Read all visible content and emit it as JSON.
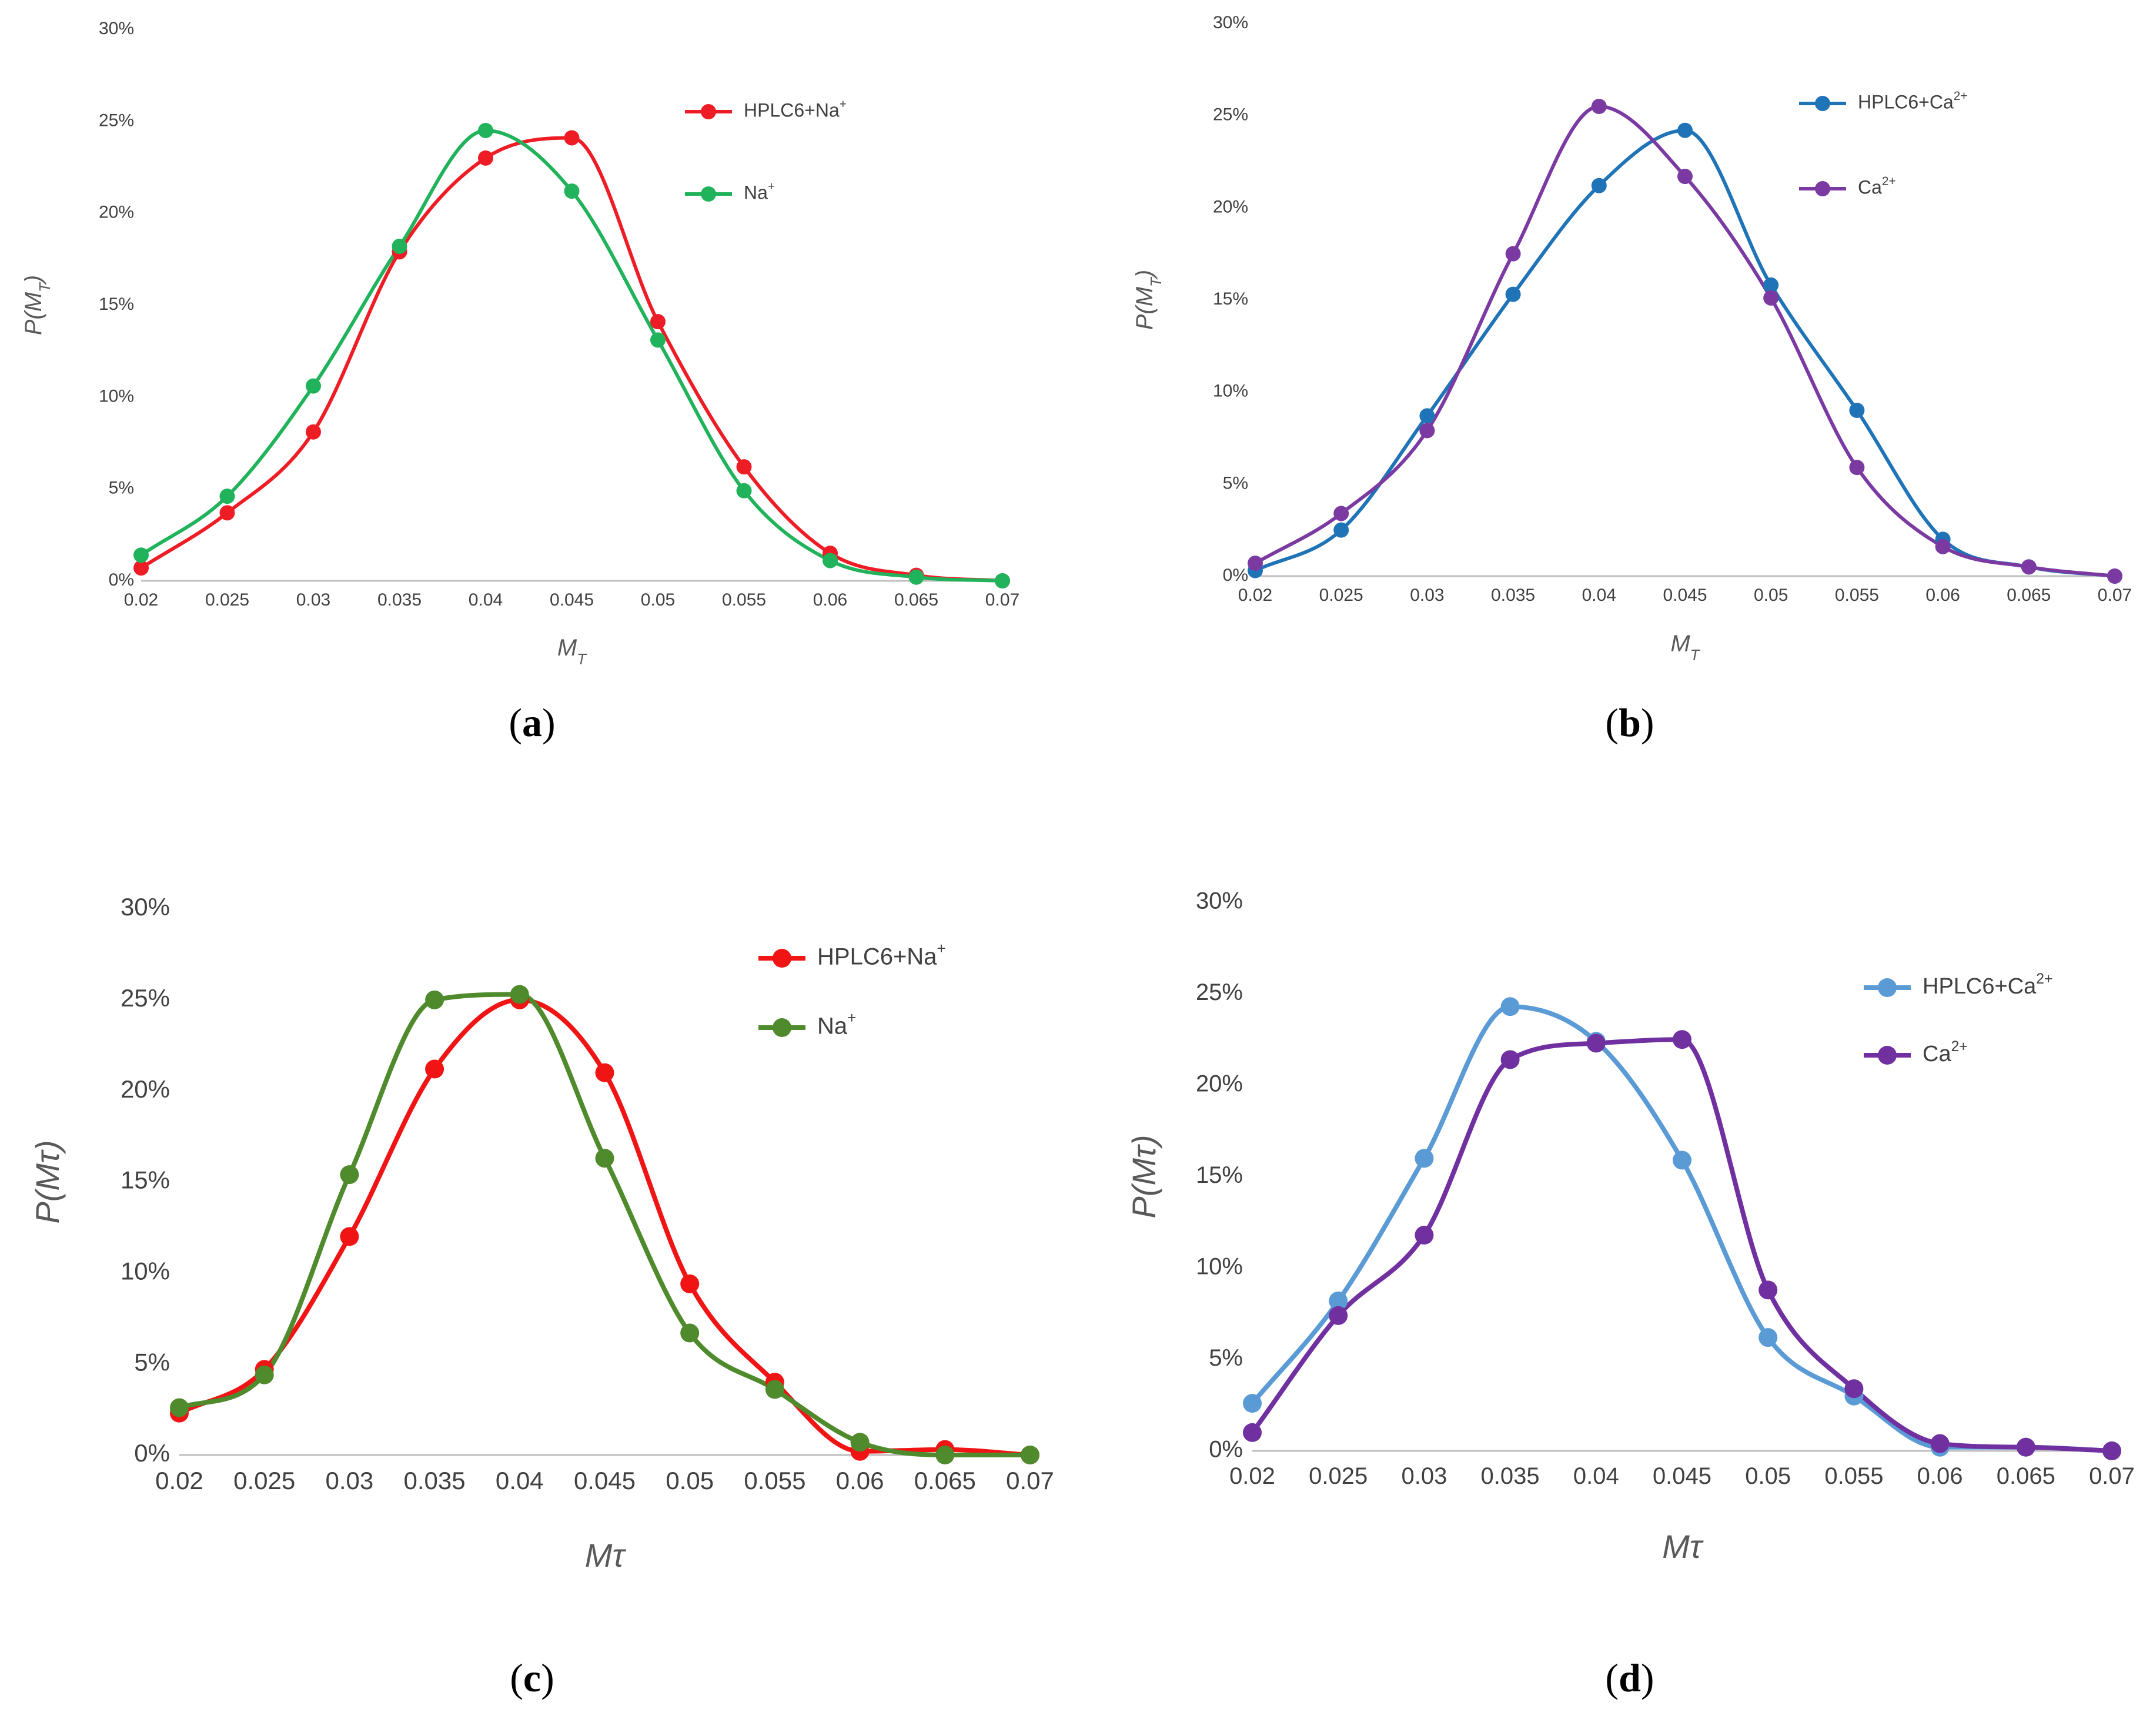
{
  "chart_data": [
    {
      "id": "a",
      "type": "line",
      "smooth": true,
      "panel_label": "a",
      "xlabel": "M",
      "xlabel_sub": "T",
      "ylabel": "P(M",
      "ylabel_sub": "T",
      "ylabel_close": ")",
      "x": [
        0.02,
        0.025,
        0.03,
        0.035,
        0.04,
        0.045,
        0.05,
        0.055,
        0.06,
        0.065,
        0.07
      ],
      "x_tick_labels": [
        "0.02",
        "0.025",
        "0.03",
        "0.035",
        "0.04",
        "0.045",
        "0.05",
        "0.055",
        "0.06",
        "0.065",
        "0.07"
      ],
      "y_tick_labels": [
        "0%",
        "5%",
        "10%",
        "15%",
        "20%",
        "25%",
        "30%"
      ],
      "xlim": [
        0.02,
        0.07
      ],
      "ylim": [
        0,
        0.3
      ],
      "legend_position": "top-right",
      "series": [
        {
          "name": "HPLC6+Na",
          "sup": "+",
          "color": "#ee1c25",
          "values": [
            0.007,
            0.037,
            0.081,
            0.179,
            0.23,
            0.241,
            0.141,
            0.062,
            0.015,
            0.003,
            0.0
          ]
        },
        {
          "name": "Na",
          "sup": "+",
          "color": "#21b35b",
          "values": [
            0.014,
            0.046,
            0.106,
            0.182,
            0.245,
            0.212,
            0.131,
            0.049,
            0.011,
            0.002,
            0.0
          ]
        }
      ]
    },
    {
      "id": "b",
      "type": "line",
      "smooth": true,
      "panel_label": "b",
      "xlabel": "M",
      "xlabel_sub": "T",
      "ylabel": "P(M",
      "ylabel_sub": "T",
      "ylabel_close": ")",
      "x": [
        0.02,
        0.025,
        0.03,
        0.035,
        0.04,
        0.045,
        0.05,
        0.055,
        0.06,
        0.065,
        0.07
      ],
      "x_tick_labels": [
        "0.02",
        "0.025",
        "0.03",
        "0.035",
        "0.04",
        "0.045",
        "0.05",
        "0.055",
        "0.06",
        "0.065",
        "0.07"
      ],
      "y_tick_labels": [
        "0%",
        "5%",
        "10%",
        "15%",
        "20%",
        "25%",
        "30%"
      ],
      "xlim": [
        0.02,
        0.07
      ],
      "ylim": [
        0,
        0.3
      ],
      "legend_position": "top-right",
      "series": [
        {
          "name": "HPLC6+Ca",
          "sup": "2+",
          "color": "#1f73b7",
          "values": [
            0.003,
            0.025,
            0.087,
            0.153,
            0.212,
            0.242,
            0.158,
            0.09,
            0.02,
            0.005,
            0.0
          ]
        },
        {
          "name": "Ca",
          "sup": "2+",
          "color": "#7b3aa2",
          "values": [
            0.007,
            0.034,
            0.079,
            0.175,
            0.255,
            0.217,
            0.151,
            0.059,
            0.016,
            0.005,
            0.0
          ]
        }
      ]
    },
    {
      "id": "c",
      "type": "line",
      "smooth": true,
      "panel_label": "c",
      "xlabel": "Mτ",
      "xlabel_sub": "",
      "ylabel": "P(Mτ",
      "ylabel_sub": "",
      "ylabel_close": ")",
      "x": [
        0.02,
        0.025,
        0.03,
        0.035,
        0.04,
        0.045,
        0.05,
        0.055,
        0.06,
        0.065,
        0.07
      ],
      "x_tick_labels": [
        "0.02",
        "0.025",
        "0.03",
        "0.035",
        "0.04",
        "0.045",
        "0.05",
        "0.055",
        "0.06",
        "0.065",
        "0.07"
      ],
      "y_tick_labels": [
        "0%",
        "5%",
        "10%",
        "15%",
        "20%",
        "25%",
        "30%"
      ],
      "xlim": [
        0.02,
        0.07
      ],
      "ylim": [
        0,
        0.3
      ],
      "legend_position": "top-right",
      "series": [
        {
          "name": "HPLC6+Na",
          "sup": "+",
          "color": "#f01414",
          "values": [
            0.023,
            0.047,
            0.12,
            0.212,
            0.25,
            0.21,
            0.094,
            0.04,
            0.002,
            0.003,
            0.0
          ]
        },
        {
          "name": "Na",
          "sup": "+",
          "color": "#4f8a2c",
          "values": [
            0.026,
            0.044,
            0.154,
            0.25,
            0.253,
            0.163,
            0.067,
            0.036,
            0.007,
            0.0,
            0.0
          ]
        }
      ]
    },
    {
      "id": "d",
      "type": "line",
      "smooth": true,
      "panel_label": "d",
      "xlabel": "Mτ",
      "xlabel_sub": "",
      "ylabel": "P(Mτ",
      "ylabel_sub": "",
      "ylabel_close": ")",
      "x": [
        0.02,
        0.025,
        0.03,
        0.035,
        0.04,
        0.045,
        0.05,
        0.055,
        0.06,
        0.065,
        0.07
      ],
      "x_tick_labels": [
        "0.02",
        "0.025",
        "0.03",
        "0.035",
        "0.04",
        "0.045",
        "0.05",
        "0.055",
        "0.06",
        "0.065",
        "0.07"
      ],
      "y_tick_labels": [
        "0%",
        "5%",
        "10%",
        "15%",
        "20%",
        "25%",
        "30%"
      ],
      "xlim": [
        0.02,
        0.07
      ],
      "ylim": [
        0,
        0.3
      ],
      "legend_position": "top-right",
      "series": [
        {
          "name": "HPLC6+Ca",
          "sup": "2+",
          "color": "#5b9bd5",
          "values": [
            0.026,
            0.082,
            0.16,
            0.243,
            0.224,
            0.159,
            0.062,
            0.03,
            0.002,
            0.002,
            0.0
          ]
        },
        {
          "name": "Ca",
          "sup": "2+",
          "color": "#7030a0",
          "values": [
            0.01,
            0.074,
            0.118,
            0.214,
            0.223,
            0.225,
            0.088,
            0.034,
            0.004,
            0.002,
            0.0
          ]
        }
      ]
    }
  ]
}
